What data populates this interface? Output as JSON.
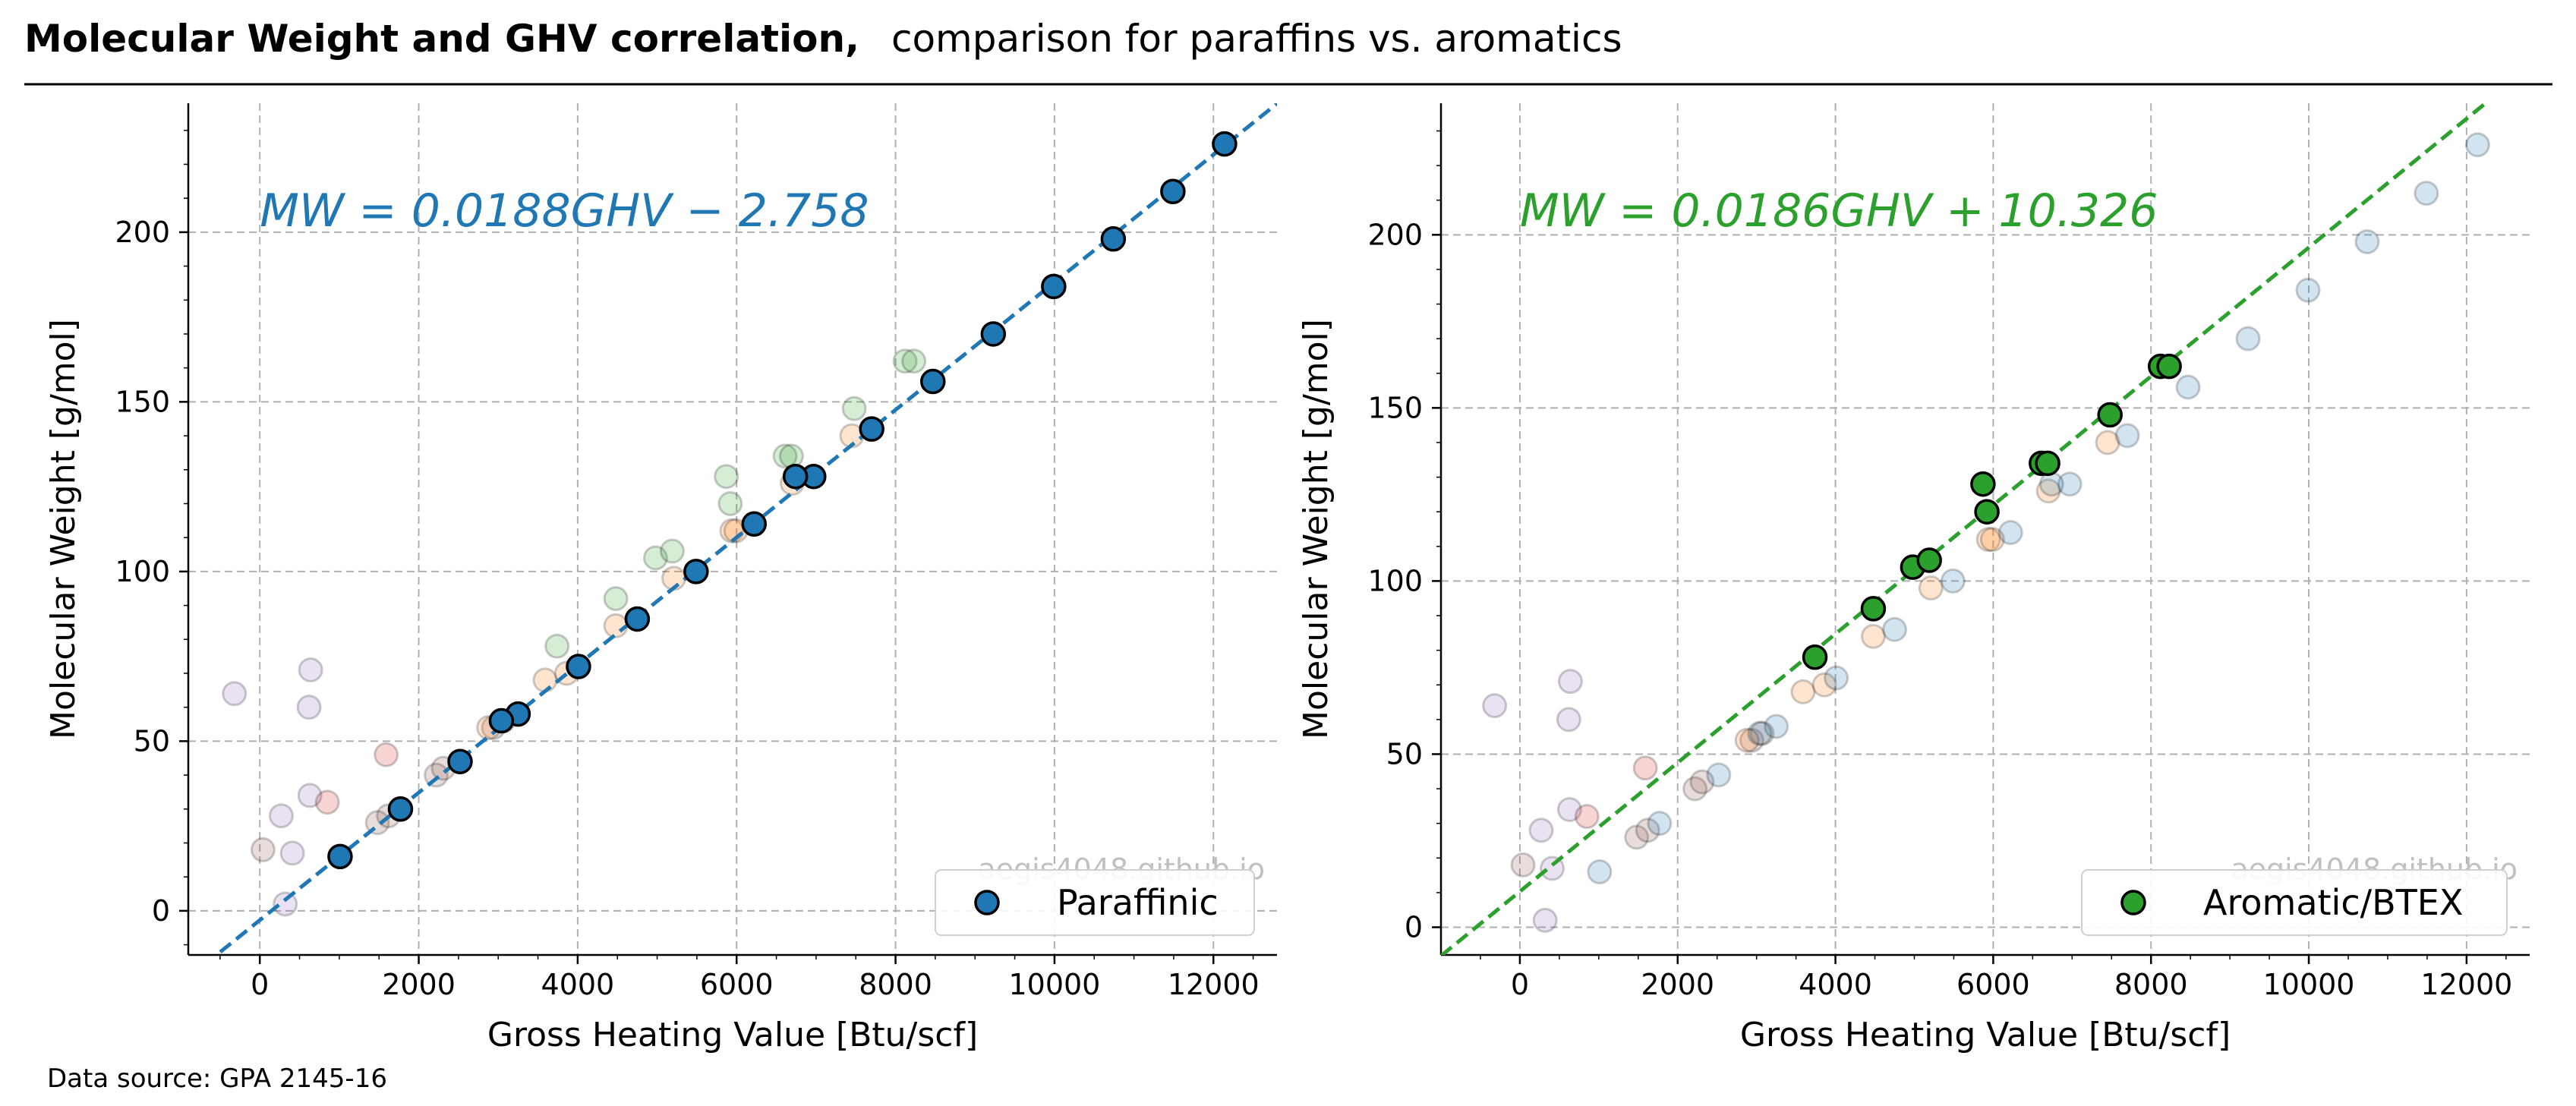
{
  "title": {
    "bold": "Molecular Weight and GHV correlation,",
    "regular": "comparison for paraffins vs. aromatics"
  },
  "footnote": "Data source: GPA 2145-16",
  "colors": {
    "paraffinic": "#1f77b4",
    "aromatic": "#2ca02c",
    "naphthenic": "#ff7f0e",
    "other_red": "#d62728",
    "other_purple": "#9467bd",
    "other_brown": "#8c564b",
    "grid": "#b0b0b0",
    "watermark": "#c0c0c0"
  },
  "chart_data": [
    {
      "type": "scatter",
      "xlabel": "Gross Heating Value [Btu/scf]",
      "ylabel": "Molecular Weight [g/mol]",
      "xlim": [
        -900,
        12800
      ],
      "ylim": [
        -13,
        238
      ],
      "xticks": [
        0,
        2000,
        4000,
        6000,
        8000,
        10000,
        12000
      ],
      "yticks": [
        0,
        50,
        100,
        150,
        200
      ],
      "grid": true,
      "legend_position": "lower-right",
      "legend": [
        "Paraffinic"
      ],
      "equation": "MW = 0.0188GHV − 2.758",
      "fit": {
        "slope": 0.0188,
        "intercept": -2.758
      },
      "highlight_series": "paraffinic",
      "watermark": "aegis4048.github.io"
    },
    {
      "type": "scatter",
      "xlabel": "Gross Heating Value [Btu/scf]",
      "ylabel": "Molecular Weight [g/mol]",
      "xlim": [
        -1000,
        12800
      ],
      "ylim": [
        -8,
        238
      ],
      "xticks": [
        0,
        2000,
        4000,
        6000,
        8000,
        10000,
        12000
      ],
      "yticks": [
        0,
        50,
        100,
        150,
        200
      ],
      "grid": true,
      "legend_position": "lower-right",
      "legend": [
        "Aromatic/BTEX"
      ],
      "equation": "MW = 0.0186GHV + 10.326",
      "fit": {
        "slope": 0.0186,
        "intercept": 10.326
      },
      "highlight_series": "aromatic",
      "watermark": "aegis4048.github.io"
    }
  ],
  "series": {
    "paraffinic": [
      [
        1010,
        16
      ],
      [
        1770,
        30
      ],
      [
        2520,
        44
      ],
      [
        3250,
        58
      ],
      [
        4010,
        72
      ],
      [
        4750,
        86
      ],
      [
        5490,
        100
      ],
      [
        6220,
        114
      ],
      [
        6970,
        128
      ],
      [
        7700,
        142
      ],
      [
        8470,
        156
      ],
      [
        9230,
        170
      ],
      [
        9990,
        184
      ],
      [
        10740,
        198
      ],
      [
        11490,
        212
      ],
      [
        12140,
        226
      ],
      [
        3040,
        56
      ],
      [
        6740,
        128
      ]
    ],
    "aromatic": [
      [
        3740,
        78
      ],
      [
        4480,
        92
      ],
      [
        4980,
        104
      ],
      [
        5190,
        106
      ],
      [
        5870,
        128
      ],
      [
        5920,
        120
      ],
      [
        6610,
        134
      ],
      [
        6690,
        134
      ],
      [
        7480,
        148
      ],
      [
        8120,
        162
      ],
      [
        8230,
        162
      ]
    ],
    "naphthenic": [
      [
        3590,
        68
      ],
      [
        4480,
        84
      ],
      [
        5210,
        98
      ],
      [
        5940,
        112
      ],
      [
        5990,
        112
      ],
      [
        6700,
        126
      ],
      [
        7450,
        140
      ],
      [
        2880,
        54
      ],
      [
        3860,
        70
      ]
    ],
    "other_red": [
      [
        1590,
        46
      ],
      [
        850,
        32
      ]
    ],
    "other_purple": [
      [
        -320,
        64
      ],
      [
        640,
        71
      ],
      [
        620,
        60
      ],
      [
        630,
        34
      ],
      [
        270,
        28
      ],
      [
        410,
        17
      ],
      [
        320,
        2
      ]
    ],
    "other_brown": [
      [
        40,
        18
      ],
      [
        1480,
        26
      ],
      [
        1620,
        28
      ],
      [
        2220,
        40
      ],
      [
        2310,
        42
      ],
      [
        2940,
        54
      ],
      [
        3070,
        56
      ]
    ]
  }
}
